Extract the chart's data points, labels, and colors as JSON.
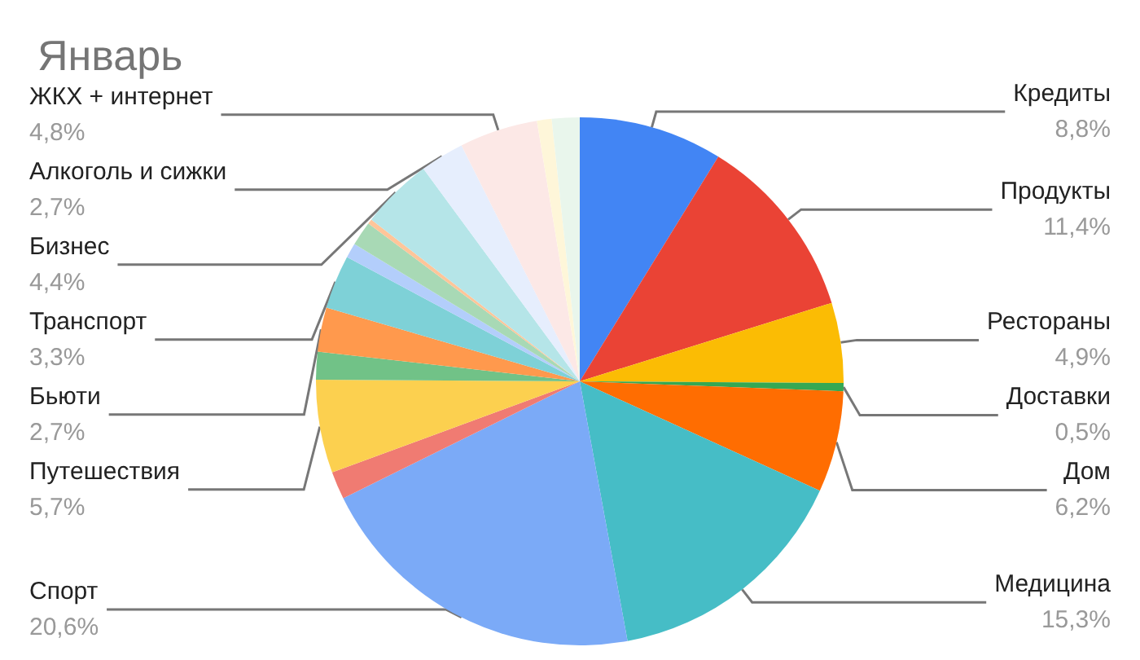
{
  "chart_data": {
    "type": "pie",
    "title": "Январь",
    "categories": [
      "Кредиты",
      "Продукты",
      "Рестораны",
      "Доставки",
      "Дом",
      "Медицина",
      "Спорт",
      null,
      "Путешествия",
      null,
      "Бьюти",
      "Транспорт",
      null,
      null,
      null,
      "Бизнес",
      "Алкоголь и сижки",
      "ЖКХ + интернет",
      null,
      null
    ],
    "values": [
      8.8,
      11.4,
      4.9,
      0.5,
      6.2,
      15.3,
      20.6,
      1.7,
      5.7,
      1.7,
      2.7,
      3.3,
      0.9,
      1.5,
      0.3,
      4.4,
      2.7,
      4.8,
      0.9,
      1.7
    ],
    "value_labels": [
      "8,8%",
      "11,4%",
      "4,9%",
      "0,5%",
      "6,2%",
      "15,3%",
      "20,6%",
      null,
      "5,7%",
      null,
      "2,7%",
      "3,3%",
      null,
      null,
      null,
      "4,4%",
      "2,7%",
      "4,8%",
      null,
      null
    ],
    "colors": [
      "#4285f4",
      "#ea4335",
      "#fbbc04",
      "#34a853",
      "#ff6d01",
      "#46bdc6",
      "#7baaf7",
      "#f07b72",
      "#fcd04f",
      "#71c287",
      "#ff994d",
      "#7ed1d7",
      "#b3cefb",
      "#a8d9b5",
      "#ffc599",
      "#b5e5e8",
      "#e6eefd",
      "#fce8e6",
      "#fef6d9",
      "#e9f6ec"
    ],
    "legend": false
  }
}
